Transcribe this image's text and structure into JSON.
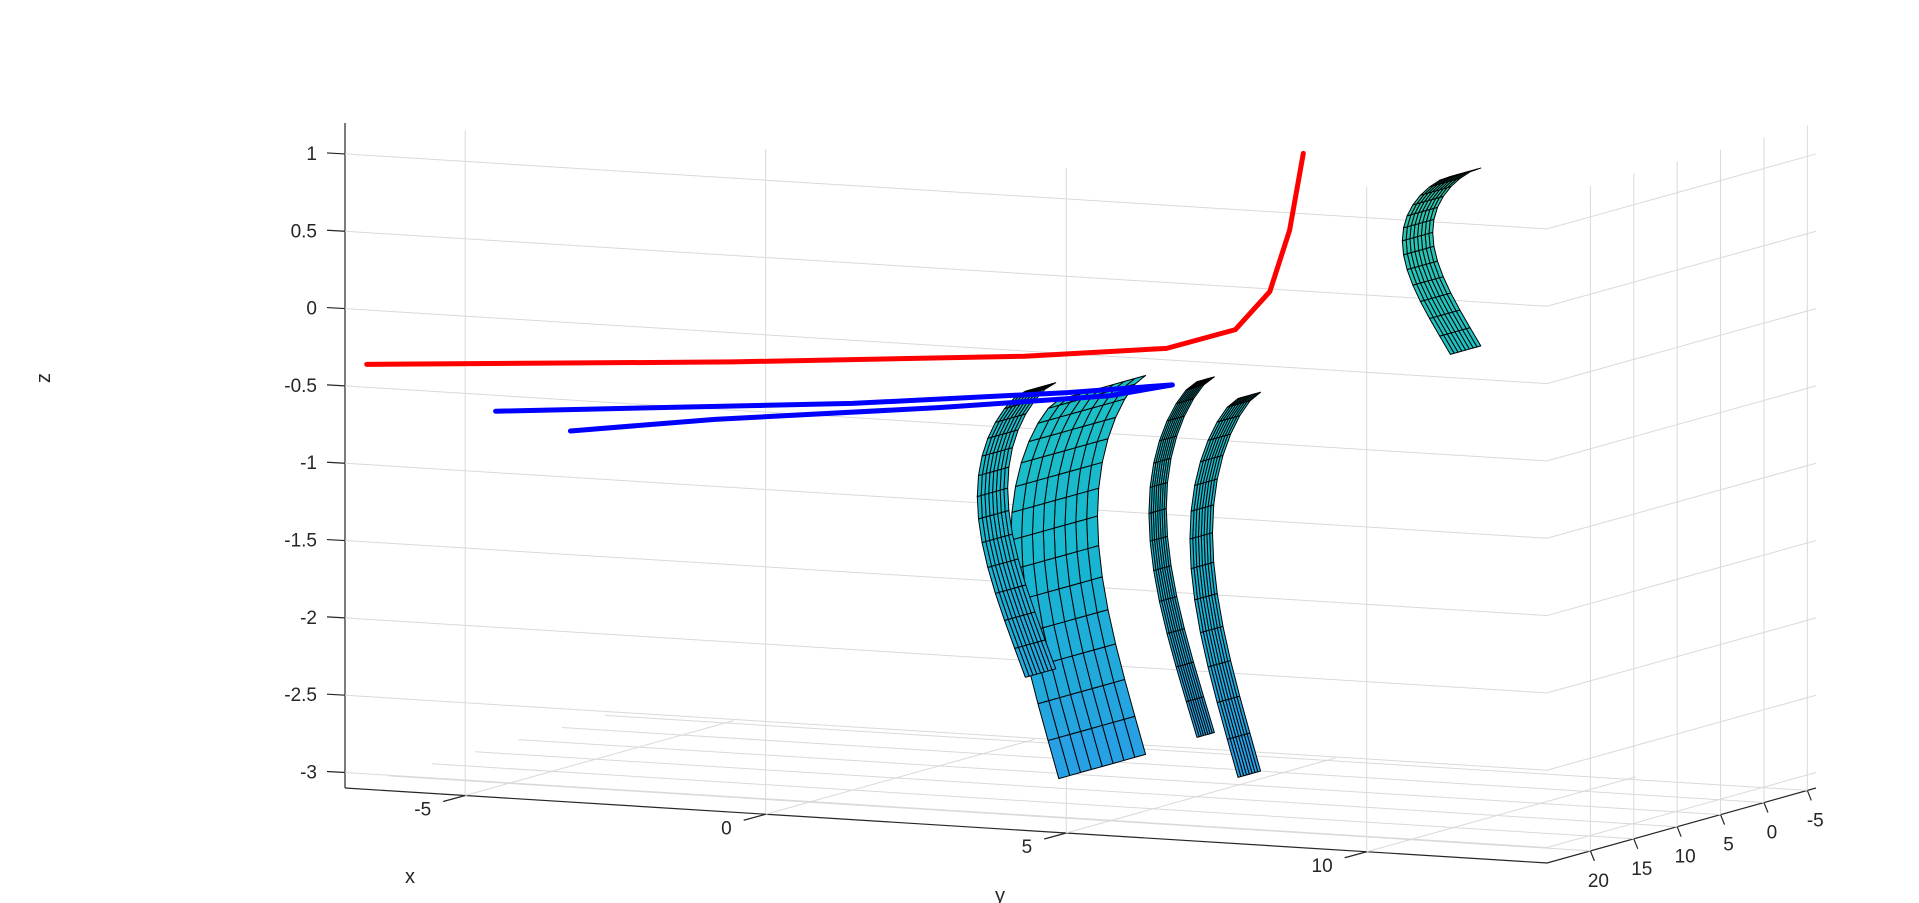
{
  "chart_data": {
    "type": "surface3d",
    "xlabel": "x",
    "ylabel": "y",
    "zlabel": "z",
    "xlim": [
      -8,
      12
    ],
    "ylim": [
      -6,
      25
    ],
    "zlim": [
      -3.1,
      1.2
    ],
    "x_ticks": [
      "-5",
      "0",
      "5",
      "10"
    ],
    "y_ticks": [
      "20",
      "15",
      "10",
      "5",
      "0",
      "-5"
    ],
    "z_ticks": [
      "1",
      "0.5",
      "0",
      "-0.5",
      "-1",
      "-1.5",
      "-2",
      "-2.5",
      "-3"
    ],
    "grid": true,
    "colormap": [
      "#2a9de8",
      "#17b7d0",
      "#1fc2c2",
      "#35c8a0"
    ],
    "surface": {
      "description_values": "sheets of the surface z(x,y)",
      "sheets": [
        {
          "x": [
            0,
            4
          ],
          "y": [
            2.0,
            12.0
          ],
          "z_top": -0.55,
          "z_bottom": -3.0
        },
        {
          "x": [
            -2,
            2
          ],
          "y": [
            2.6,
            5.2
          ],
          "z_top": -0.6,
          "z_bottom": -3.05
        },
        {
          "x": [
            -1,
            3
          ],
          "y": [
            1.0,
            3.0
          ],
          "z_top": -0.55,
          "z_bottom": -2.85
        },
        {
          "x": [
            2,
            6
          ],
          "y": [
            -1.5,
            2.0
          ],
          "z_top": -0.7,
          "z_bottom": -2.55
        },
        {
          "x": [
            -5,
            -1
          ],
          "y": [
            -2.0,
            1.5
          ],
          "z_top": 0.85,
          "z_bottom": -0.3
        }
      ]
    },
    "series": [
      {
        "color": "#ff0000",
        "points": [
          [
            12,
            22.5,
            -0.4
          ],
          [
            7,
            15,
            -0.38
          ],
          [
            3,
            9,
            -0.34
          ],
          [
            1,
            6.5,
            -0.28
          ],
          [
            0,
            5.5,
            -0.15
          ],
          [
            -0.5,
            5.0,
            0.1
          ],
          [
            -0.8,
            4.8,
            0.5
          ],
          [
            -1.0,
            4.6,
            1.0
          ]
        ]
      },
      {
        "color": "#0000ff",
        "points": [
          [
            10,
            21.5,
            -0.67
          ],
          [
            5,
            15,
            -0.6
          ],
          [
            2,
            11,
            -0.52
          ],
          [
            0.5,
            9.3,
            -0.46
          ],
          [
            1.5,
            9.6,
            -0.55
          ],
          [
            4,
            12,
            -0.65
          ],
          [
            7,
            17,
            -0.72
          ],
          [
            9,
            19.8,
            -0.8
          ]
        ]
      }
    ]
  }
}
